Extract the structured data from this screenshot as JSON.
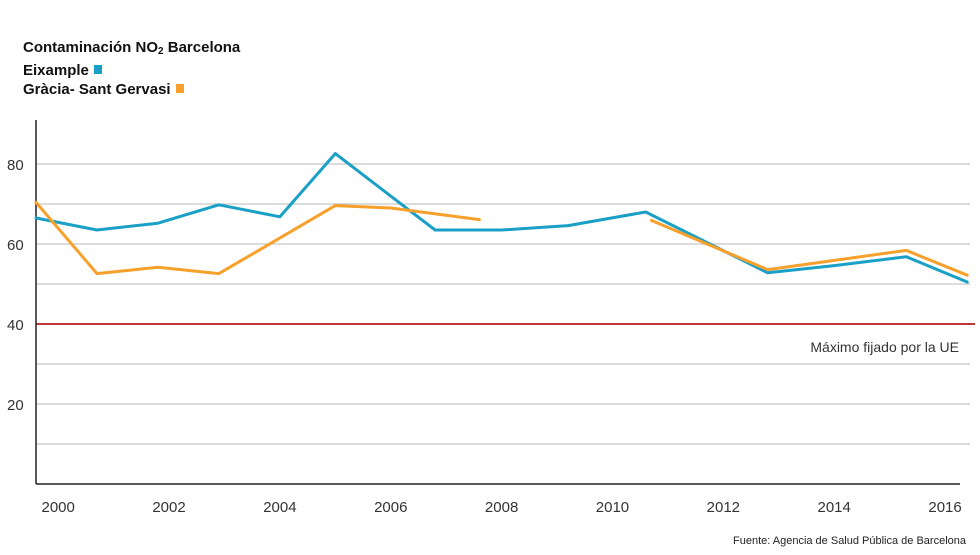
{
  "title": {
    "prefix": "Contaminación NO",
    "subscript": "2",
    "suffix": " Barcelona"
  },
  "chart_data": {
    "type": "line",
    "title": "Contaminación NO2 Barcelona",
    "xlabel": "",
    "ylabel": "",
    "xlim": [
      1999.6,
      2016.45
    ],
    "ylim": [
      0,
      91
    ],
    "x_ticks": [
      "2000",
      "2002",
      "2004",
      "2006",
      "2008",
      "2010",
      "2012",
      "2014",
      "2016"
    ],
    "y_ticks": [
      "20",
      "40",
      "60",
      "80"
    ],
    "gridlines": [
      10,
      20,
      30,
      50,
      60,
      70,
      80
    ],
    "series": [
      {
        "name": "Eixample",
        "color": "#1aa0c6",
        "segments": [
          [
            [
              1999.6,
              66.5
            ],
            [
              2000.7,
              63.5
            ],
            [
              2001.8,
              65.2
            ],
            [
              2002.9,
              69.8
            ],
            [
              2004.0,
              66.8
            ],
            [
              2005.0,
              82.6
            ],
            [
              2006.8,
              63.5
            ],
            [
              2008.0,
              63.5
            ],
            [
              2009.2,
              64.6
            ],
            [
              2010.6,
              68.0
            ],
            [
              2012.8,
              52.8
            ],
            [
              2014.0,
              54.6
            ],
            [
              2015.3,
              56.8
            ],
            [
              2016.4,
              50.5
            ]
          ]
        ]
      },
      {
        "name": "Gràcia- Sant Gervasi",
        "color": "#f7a02b",
        "segments": [
          [
            [
              1999.6,
              70.4
            ],
            [
              2000.7,
              52.6
            ],
            [
              2001.8,
              54.2
            ],
            [
              2002.9,
              52.6
            ],
            [
              2005.0,
              69.6
            ],
            [
              2006.0,
              69.0
            ],
            [
              2007.6,
              66.1
            ]
          ],
          [
            [
              2010.7,
              65.9
            ],
            [
              2012.8,
              53.6
            ],
            [
              2015.3,
              58.4
            ],
            [
              2016.4,
              52.2
            ]
          ]
        ]
      }
    ],
    "reference_line": {
      "value": 40,
      "label": "Máximo fijado por la UE",
      "color": "#c0373a"
    }
  },
  "source": "Fuente: Agencia de Salud Pública de Barcelona"
}
